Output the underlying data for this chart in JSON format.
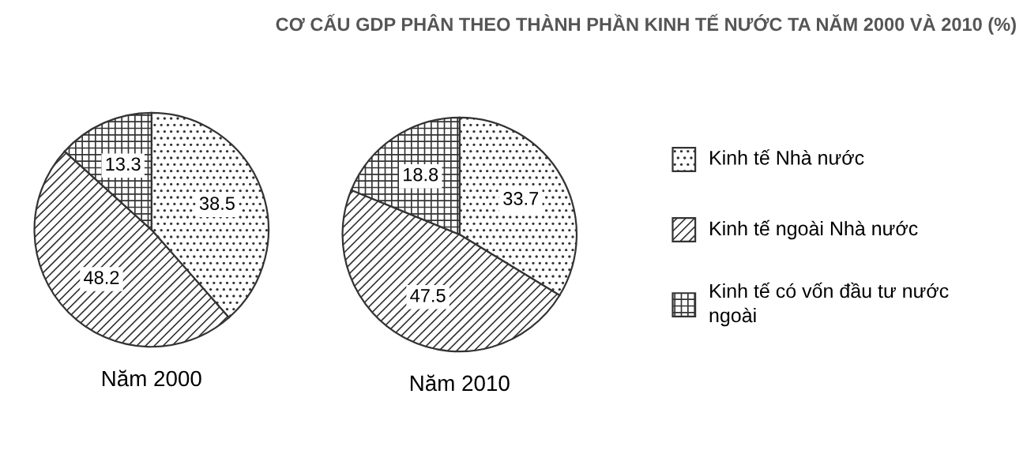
{
  "chart_data": [
    {
      "type": "pie",
      "title": "CƠ CẤU GDP PHÂN THEO THÀNH PHẦN KINH TẾ NƯỚC TA NĂM 2000 VÀ 2010 (%)",
      "xlabel": "Năm 2000",
      "categories": [
        "Kinh tế Nhà nước",
        "Kinh tế ngoài Nhà nước",
        "Kinh tế có vốn đầu tư nước ngoài"
      ],
      "values": [
        38.5,
        48.2,
        13.3
      ],
      "colors": [
        "#ffffff",
        "#ffffff",
        "#ffffff"
      ],
      "data_labels": true,
      "legend": "right"
    },
    {
      "type": "pie",
      "xlabel": "Năm 2010",
      "values": [
        33.7,
        47.5,
        18.8
      ],
      "colors": [
        "#ffffff",
        "#ffffff",
        "#ffffff"
      ],
      "data_labels": true
    }
  ]
}
